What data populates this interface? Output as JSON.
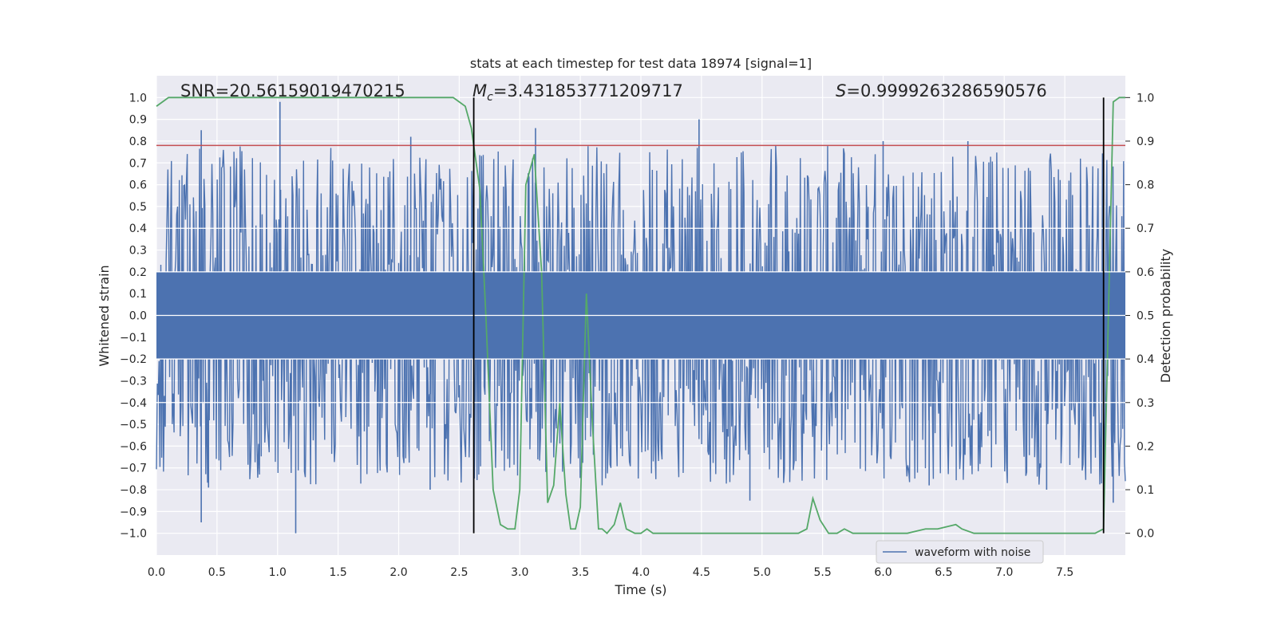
{
  "chart_data": {
    "type": "line",
    "title": "stats at each timestep for test data 18974 [signal=1]",
    "xlabel": "Time (s)",
    "ylabel_left": "Whitened strain",
    "ylabel_right": "Detection probability",
    "xlim": [
      0.0,
      8.0
    ],
    "ylim_left": [
      -1.1,
      1.1
    ],
    "ylim_right": [
      -0.05,
      1.05
    ],
    "x_ticks": [
      "0.0",
      "0.5",
      "1.0",
      "1.5",
      "2.0",
      "2.5",
      "3.0",
      "3.5",
      "4.0",
      "4.5",
      "5.0",
      "5.5",
      "6.0",
      "6.5",
      "7.0",
      "7.5"
    ],
    "x_tick_values": [
      0.0,
      0.5,
      1.0,
      1.5,
      2.0,
      2.5,
      3.0,
      3.5,
      4.0,
      4.5,
      5.0,
      5.5,
      6.0,
      6.5,
      7.0,
      7.5
    ],
    "y_left_ticks": [
      "1.0",
      "0.9",
      "0.8",
      "0.7",
      "0.6",
      "0.5",
      "0.4",
      "0.3",
      "0.2",
      "0.1",
      "0.0",
      "−0.1",
      "−0.2",
      "−0.3",
      "−0.4",
      "−0.5",
      "−0.6",
      "−0.7",
      "−0.8",
      "−0.9",
      "−1.0"
    ],
    "y_left_tick_values": [
      1.0,
      0.9,
      0.8,
      0.7,
      0.6,
      0.5,
      0.4,
      0.3,
      0.2,
      0.1,
      0.0,
      -0.1,
      -0.2,
      -0.3,
      -0.4,
      -0.5,
      -0.6,
      -0.7,
      -0.8,
      -0.9,
      -1.0
    ],
    "y_right_ticks": [
      "1.0",
      "0.9",
      "0.8",
      "0.7",
      "0.6",
      "0.5",
      "0.4",
      "0.3",
      "0.2",
      "0.1",
      "0.0"
    ],
    "y_right_tick_values": [
      1.0,
      0.9,
      0.8,
      0.7,
      0.6,
      0.5,
      0.4,
      0.3,
      0.2,
      0.1,
      0.0
    ],
    "annotations": {
      "snr": "SNR=20.56159019470215",
      "mc_symbol": "M",
      "mc_sub": "c",
      "mc_value": "=3.431853771209717",
      "s_symbol": "S",
      "s_value": "=0.9999263286590576"
    },
    "threshold_left": 0.78,
    "vertical_lines_x": [
      2.62,
      7.82
    ],
    "series": [
      {
        "name": "waveform with noise",
        "axis": "left",
        "color": "#4c72b0",
        "n_samples": 1100,
        "envelope_max": 0.6,
        "peaks": [
          {
            "x": 0.37,
            "y": 0.85
          },
          {
            "x": 1.02,
            "y": 0.98
          },
          {
            "x": 2.1,
            "y": 0.82
          },
          {
            "x": 3.13,
            "y": 0.86
          },
          {
            "x": 4.48,
            "y": 0.9
          },
          {
            "x": 6.0,
            "y": 0.8
          },
          {
            "x": 6.7,
            "y": 0.8
          },
          {
            "x": 0.37,
            "y": -0.95
          },
          {
            "x": 1.15,
            "y": -1.0
          },
          {
            "x": 0.43,
            "y": -0.79
          },
          {
            "x": 2.26,
            "y": -0.8
          },
          {
            "x": 4.9,
            "y": -0.85
          },
          {
            "x": 6.38,
            "y": -0.78
          },
          {
            "x": 7.35,
            "y": -0.8
          },
          {
            "x": 7.9,
            "y": -0.86
          }
        ]
      },
      {
        "name": "Detection probability",
        "axis": "right",
        "color": "#55a868",
        "x": [
          0.0,
          0.05,
          0.1,
          0.5,
          1.0,
          1.5,
          2.0,
          2.3,
          2.45,
          2.5,
          2.55,
          2.6,
          2.67,
          2.72,
          2.78,
          2.84,
          2.9,
          2.96,
          3.0,
          3.05,
          3.12,
          3.18,
          3.23,
          3.28,
          3.33,
          3.38,
          3.42,
          3.46,
          3.5,
          3.55,
          3.6,
          3.65,
          3.68,
          3.72,
          3.78,
          3.83,
          3.88,
          3.95,
          4.0,
          4.05,
          4.1,
          4.15,
          4.25,
          4.4,
          4.6,
          4.8,
          5.0,
          5.1,
          5.3,
          5.37,
          5.42,
          5.48,
          5.55,
          5.62,
          5.68,
          5.75,
          5.85,
          6.0,
          6.2,
          6.35,
          6.45,
          6.6,
          6.65,
          6.75,
          6.85,
          7.0,
          7.2,
          7.4,
          7.6,
          7.75,
          7.82,
          7.86,
          7.9,
          7.95,
          8.0
        ],
        "y": [
          0.98,
          0.99,
          1.0,
          1.0,
          1.0,
          1.0,
          1.0,
          1.0,
          1.0,
          0.99,
          0.98,
          0.93,
          0.79,
          0.5,
          0.1,
          0.02,
          0.01,
          0.01,
          0.1,
          0.8,
          0.87,
          0.6,
          0.07,
          0.11,
          0.3,
          0.09,
          0.01,
          0.01,
          0.06,
          0.55,
          0.25,
          0.01,
          0.01,
          0.0,
          0.02,
          0.07,
          0.01,
          0.0,
          0.0,
          0.01,
          0.0,
          0.0,
          0.0,
          0.0,
          0.0,
          0.0,
          0.0,
          0.0,
          0.0,
          0.01,
          0.08,
          0.03,
          0.0,
          0.0,
          0.01,
          0.0,
          0.0,
          0.0,
          0.0,
          0.01,
          0.01,
          0.02,
          0.01,
          0.0,
          0.0,
          0.0,
          0.0,
          0.0,
          0.0,
          0.0,
          0.01,
          0.5,
          0.99,
          1.0,
          1.0
        ]
      }
    ],
    "legend": {
      "label": "waveform with noise",
      "placement": "lower-right"
    }
  }
}
